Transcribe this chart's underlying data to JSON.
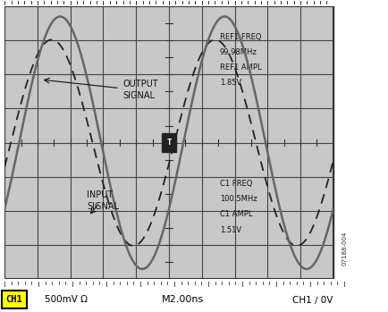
{
  "bg_color": "#ffffff",
  "screen_bg": "#c8c8c8",
  "grid_color": "#444444",
  "n_hdiv": 10,
  "n_vdiv": 8,
  "output_color": "#666666",
  "input_color": "#222222",
  "output_amplitude": 1.85,
  "input_amplitude": 1.51,
  "output_freq_MHz": 99.98,
  "input_freq_MHz": 100.5,
  "time_per_div_ns": 2.0,
  "volt_per_div_mV": 500,
  "phase_shift_deg": 18,
  "initial_phase_out": -0.55,
  "annotations": {
    "ref1_freq": "REF1 FREQ",
    "ref1_freq_val": "99.98MHz",
    "ref1_ampl": "REF1 AMPL",
    "ref1_ampl_val": "1.85V",
    "c1_freq": "C1 FREQ",
    "c1_freq_val": "100.5MHz",
    "c1_ampl": "C1 AMPL",
    "c1_ampl_val": "1.51V"
  },
  "label_output": "OUTPUT\nSIGNAL",
  "label_input": "INPUT\nSIGNAL",
  "bottom_left": "500mV Ω",
  "bottom_center": "M2.00ns",
  "bottom_right": "CH1 ∕ 0V",
  "ch1_label": "CH1",
  "sidebar_text": "07188-004",
  "trigger_label": "T"
}
